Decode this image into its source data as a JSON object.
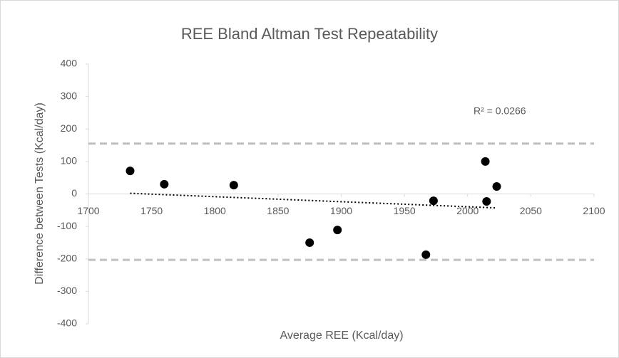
{
  "chart_data": {
    "type": "scatter",
    "title": "REE Bland Altman Test Repeatability",
    "x_label": "Average REE (Kcal/day)",
    "y_label": "Difference between Tests (Kcal/day)",
    "x": [
      1733,
      1760,
      1815,
      1875,
      1897,
      1967,
      1973,
      2014,
      2015,
      2023
    ],
    "y": [
      71,
      30,
      27,
      -150,
      -111,
      -187,
      -21,
      100,
      -23,
      23
    ],
    "color": "#000000",
    "xlim": [
      1700,
      2100
    ],
    "xticks": [
      1700,
      1750,
      1800,
      1850,
      1900,
      1950,
      2000,
      2050,
      2100
    ],
    "ylim": [
      -400,
      400
    ],
    "yticks": [
      -400,
      -300,
      -200,
      -100,
      0,
      100,
      200,
      300,
      400
    ],
    "limit_lines": [
      155,
      -203
    ],
    "limit_color": "#bfbfbf",
    "trendline": {
      "x": [
        1733,
        2023
      ],
      "y": [
        2,
        -43
      ],
      "label": "R² = 0.0266"
    }
  }
}
